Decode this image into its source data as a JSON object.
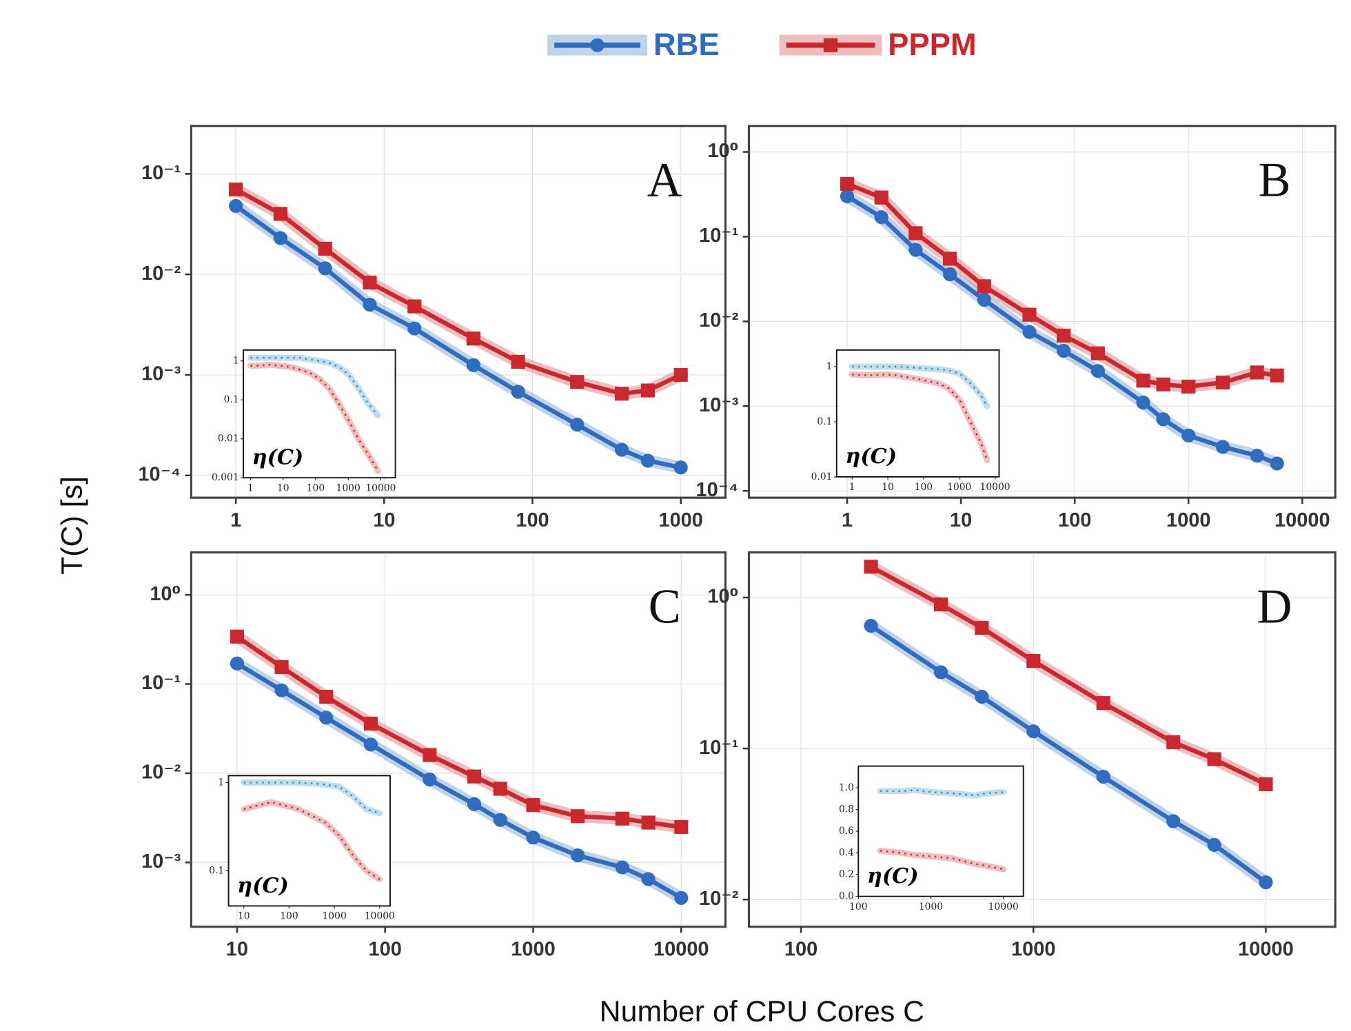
{
  "figure": {
    "x_label": "Number of CPU Cores C",
    "y_label": "T(C) [s]"
  },
  "chart_data": [
    {
      "type": "line",
      "label": "A",
      "log_x": true,
      "log_y": true,
      "grid": true,
      "x": [
        1,
        2,
        4,
        8,
        16,
        40,
        80,
        200,
        400,
        600,
        1000
      ],
      "xlim": [
        0.5,
        2000
      ],
      "ylim": [
        6e-05,
        0.3
      ],
      "xticks": [
        1,
        10,
        100,
        1000
      ],
      "yticks": [
        {
          "value": 0.1,
          "label": "10⁻¹"
        },
        {
          "value": 0.01,
          "label": "10⁻²"
        },
        {
          "value": 0.001,
          "label": "10⁻³"
        },
        {
          "value": 0.0001,
          "label": "10⁻⁴"
        }
      ],
      "series": [
        {
          "name": "RBE",
          "color": "#2f6cbd",
          "marker": "circle",
          "values": [
            0.048,
            0.023,
            0.0115,
            0.005,
            0.0029,
            0.00125,
            0.00068,
            0.00032,
            0.00018,
            0.00014,
            0.00012
          ]
        },
        {
          "name": "PPPM",
          "color": "#c8282e",
          "marker": "square",
          "values": [
            0.07,
            0.04,
            0.018,
            0.0083,
            0.0048,
            0.0023,
            0.00135,
            0.00085,
            0.00065,
            0.0007,
            0.001
          ]
        }
      ],
      "inset": {
        "type": "line",
        "ylabel": "η(C)",
        "log_x": true,
        "log_y": true,
        "x": [
          1,
          2,
          4,
          8,
          16,
          32,
          64,
          128,
          256,
          512,
          1024,
          2048,
          4096,
          8192
        ],
        "xlim": [
          0.6,
          28000
        ],
        "ylim": [
          0.001,
          1.9
        ],
        "xticks": [
          1,
          10,
          100,
          1000,
          10000
        ],
        "yticks": [
          1,
          0.1,
          0.01,
          0.001
        ],
        "series": [
          {
            "color": "#2f8fc4",
            "values": [
              1.2,
              1.2,
              1.2,
              1.2,
              1.2,
              1.2,
              1.1,
              1.0,
              0.9,
              0.7,
              0.45,
              0.2,
              0.08,
              0.04
            ]
          },
          {
            "color": "#c8282e",
            "values": [
              0.75,
              0.75,
              0.8,
              0.75,
              0.7,
              0.6,
              0.5,
              0.35,
              0.2,
              0.08,
              0.03,
              0.01,
              0.004,
              0.0015
            ]
          }
        ]
      }
    },
    {
      "type": "line",
      "label": "B",
      "log_x": true,
      "log_y": true,
      "grid": true,
      "x": [
        1,
        2,
        4,
        8,
        16,
        40,
        80,
        160,
        400,
        600,
        1000,
        2000,
        4000,
        6000
      ],
      "xlim": [
        0.137,
        19500
      ],
      "ylim": [
        8.3e-05,
        2.03
      ],
      "xticks": [
        1,
        10,
        100,
        1000,
        10000
      ],
      "yticks": [
        {
          "value": 1,
          "label": "10⁰"
        },
        {
          "value": 0.1,
          "label": "10⁻¹"
        },
        {
          "value": 0.01,
          "label": "10⁻²"
        },
        {
          "value": 0.001,
          "label": "10⁻³"
        },
        {
          "value": 0.0001,
          "label": "10⁻⁴"
        }
      ],
      "series": [
        {
          "name": "RBE",
          "color": "#2f6cbd",
          "marker": "circle",
          "values": [
            0.3,
            0.17,
            0.07,
            0.036,
            0.018,
            0.0075,
            0.0045,
            0.0026,
            0.0011,
            0.0007,
            0.00045,
            0.00033,
            0.00026,
            0.00021
          ]
        },
        {
          "name": "PPPM",
          "color": "#c8282e",
          "marker": "square",
          "values": [
            0.42,
            0.29,
            0.11,
            0.055,
            0.026,
            0.012,
            0.0068,
            0.0042,
            0.002,
            0.0018,
            0.0017,
            0.0019,
            0.0025,
            0.0023
          ]
        }
      ],
      "inset": {
        "type": "line",
        "ylabel": "η(C)",
        "log_x": true,
        "log_y": true,
        "x": [
          1,
          2,
          4,
          8,
          16,
          32,
          64,
          128,
          256,
          512,
          1024,
          2048,
          4096,
          6000
        ],
        "xlim": [
          0.37,
          13000
        ],
        "ylim": [
          0.01,
          2
        ],
        "xticks": [
          1,
          10,
          100,
          1000,
          10000
        ],
        "yticks": [
          1,
          0.1,
          0.01
        ],
        "series": [
          {
            "color": "#2f8fc4",
            "values": [
              1,
              1,
              1,
              1,
              1,
              0.98,
              0.95,
              0.92,
              0.9,
              0.85,
              0.75,
              0.5,
              0.3,
              0.19
            ]
          },
          {
            "color": "#c8282e",
            "values": [
              0.72,
              0.7,
              0.7,
              0.72,
              0.7,
              0.65,
              0.6,
              0.55,
              0.5,
              0.4,
              0.25,
              0.1,
              0.04,
              0.02
            ]
          }
        ]
      }
    },
    {
      "type": "line",
      "label": "C",
      "log_x": true,
      "log_y": true,
      "grid": true,
      "x": [
        10,
        20,
        40,
        80,
        200,
        400,
        600,
        1000,
        2000,
        4000,
        6000,
        10000
      ],
      "xlim": [
        4.9,
        19900
      ],
      "ylim": [
        0.00019,
        2.99
      ],
      "xticks": [
        10,
        100,
        1000,
        10000
      ],
      "yticks": [
        {
          "value": 1,
          "label": "10⁰"
        },
        {
          "value": 0.1,
          "label": "10⁻¹"
        },
        {
          "value": 0.01,
          "label": "10⁻²"
        },
        {
          "value": 0.001,
          "label": "10⁻³"
        }
      ],
      "series": [
        {
          "name": "RBE",
          "color": "#2f6cbd",
          "marker": "circle",
          "values": [
            0.17,
            0.085,
            0.042,
            0.021,
            0.0085,
            0.0045,
            0.003,
            0.0019,
            0.0012,
            0.00088,
            0.00065,
            0.0004
          ]
        },
        {
          "name": "PPPM",
          "color": "#c8282e",
          "marker": "square",
          "values": [
            0.34,
            0.155,
            0.072,
            0.036,
            0.016,
            0.0092,
            0.0067,
            0.0044,
            0.0033,
            0.0031,
            0.0028,
            0.0025
          ]
        }
      ],
      "inset": {
        "type": "line",
        "ylabel": "η(C)",
        "log_x": true,
        "log_y": true,
        "x": [
          10,
          20,
          40,
          80,
          160,
          320,
          640,
          1280,
          2560,
          5120,
          10000
        ],
        "xlim": [
          4.6,
          17000
        ],
        "ylim": [
          0.04,
          1.2
        ],
        "xticks": [
          10,
          100,
          1000,
          10000
        ],
        "yticks": [
          1,
          0.1
        ],
        "series": [
          {
            "color": "#2f8fc4",
            "values": [
              1,
              1,
              1,
              1,
              1,
              0.98,
              0.95,
              0.9,
              0.7,
              0.5,
              0.45
            ]
          },
          {
            "color": "#c8282e",
            "values": [
              0.5,
              0.55,
              0.6,
              0.55,
              0.5,
              0.42,
              0.35,
              0.25,
              0.15,
              0.1,
              0.08
            ]
          }
        ]
      }
    },
    {
      "type": "line",
      "label": "D",
      "log_x": true,
      "log_y": true,
      "grid": true,
      "x": [
        200,
        400,
        600,
        1000,
        2000,
        4000,
        6000,
        10000
      ],
      "xlim": [
        59.7,
        19900
      ],
      "ylim": [
        0.0066,
        1.99
      ],
      "xticks": [
        100,
        1000,
        10000
      ],
      "yticks": [
        {
          "value": 1,
          "label": "10⁰"
        },
        {
          "value": 0.1,
          "label": "10⁻¹"
        },
        {
          "value": 0.01,
          "label": "10⁻²"
        }
      ],
      "series": [
        {
          "name": "RBE",
          "color": "#2f6cbd",
          "marker": "circle",
          "values": [
            0.65,
            0.32,
            0.22,
            0.13,
            0.065,
            0.033,
            0.023,
            0.013
          ]
        },
        {
          "name": "PPPM",
          "color": "#c8282e",
          "marker": "square",
          "values": [
            1.6,
            0.9,
            0.63,
            0.38,
            0.2,
            0.11,
            0.085,
            0.058
          ]
        }
      ],
      "inset": {
        "type": "line",
        "ylabel": "η(C)",
        "log_x": true,
        "log_y": false,
        "x": [
          200,
          400,
          600,
          1000,
          2000,
          4000,
          6000,
          10000
        ],
        "xlim": [
          100,
          18900
        ],
        "ylim": [
          0,
          1.2
        ],
        "xticks": [
          100,
          1000,
          10000
        ],
        "yticks": [
          {
            "value": 1,
            "label": "1.0"
          },
          0.8,
          0.6,
          0.4,
          0.2,
          {
            "value": 0,
            "label": "0.0"
          }
        ],
        "series": [
          {
            "color": "#2f8fc4",
            "values": [
              0.97,
              0.97,
              0.98,
              0.96,
              0.95,
              0.93,
              0.95,
              0.96
            ]
          },
          {
            "color": "#c8282e",
            "values": [
              0.42,
              0.4,
              0.38,
              0.37,
              0.35,
              0.3,
              0.28,
              0.25
            ]
          }
        ]
      }
    }
  ]
}
